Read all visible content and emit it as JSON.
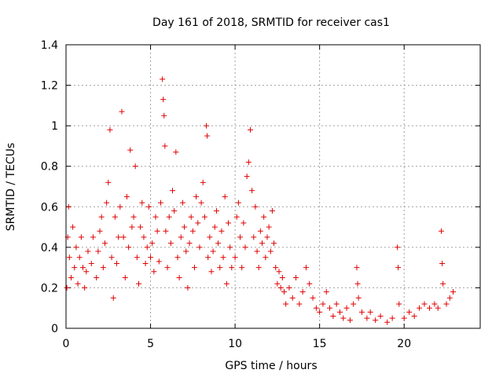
{
  "chart_data": {
    "type": "scatter",
    "title": "Day 161 of 2018, SRMTID for receiver cas1",
    "xlabel": "GPS time / hours",
    "ylabel": "SRMTID / TECUs",
    "xlim": [
      0,
      24.5
    ],
    "ylim": [
      0,
      1.4
    ],
    "x_ticks": [
      "0",
      "5",
      "10",
      "15",
      "20"
    ],
    "x_tick_values": [
      0,
      5,
      10,
      15,
      20
    ],
    "y_ticks": [
      "0",
      "0.2",
      "0.4",
      "0.6",
      "0.8",
      "1",
      "1.2",
      "1.4"
    ],
    "y_tick_values": [
      0,
      0.2,
      0.4,
      0.6,
      0.8,
      1.0,
      1.2,
      1.4
    ],
    "grid": true,
    "marker": "+",
    "series": [
      {
        "name": "SRMTID",
        "color": "#e00000",
        "points": [
          [
            0.05,
            0.2
          ],
          [
            0.1,
            0.45
          ],
          [
            0.15,
            0.6
          ],
          [
            0.2,
            0.35
          ],
          [
            0.3,
            0.25
          ],
          [
            0.4,
            0.5
          ],
          [
            0.5,
            0.3
          ],
          [
            0.6,
            0.4
          ],
          [
            0.7,
            0.22
          ],
          [
            0.8,
            0.35
          ],
          [
            0.9,
            0.45
          ],
          [
            1.0,
            0.3
          ],
          [
            1.1,
            0.2
          ],
          [
            1.2,
            0.28
          ],
          [
            1.3,
            0.38
          ],
          [
            1.5,
            0.32
          ],
          [
            1.6,
            0.45
          ],
          [
            1.8,
            0.25
          ],
          [
            1.9,
            0.38
          ],
          [
            2.0,
            0.48
          ],
          [
            2.1,
            0.55
          ],
          [
            2.2,
            0.3
          ],
          [
            2.3,
            0.42
          ],
          [
            2.4,
            0.62
          ],
          [
            2.5,
            0.72
          ],
          [
            2.6,
            0.98
          ],
          [
            2.7,
            0.35
          ],
          [
            2.8,
            0.15
          ],
          [
            2.9,
            0.55
          ],
          [
            3.0,
            0.32
          ],
          [
            3.1,
            0.45
          ],
          [
            3.2,
            0.6
          ],
          [
            3.3,
            1.07
          ],
          [
            3.4,
            0.45
          ],
          [
            3.5,
            0.25
          ],
          [
            3.6,
            0.65
          ],
          [
            3.7,
            0.4
          ],
          [
            3.8,
            0.88
          ],
          [
            3.9,
            0.5
          ],
          [
            4.0,
            0.55
          ],
          [
            4.1,
            0.8
          ],
          [
            4.2,
            0.35
          ],
          [
            4.3,
            0.22
          ],
          [
            4.4,
            0.5
          ],
          [
            4.5,
            0.62
          ],
          [
            4.6,
            0.45
          ],
          [
            4.7,
            0.32
          ],
          [
            4.8,
            0.4
          ],
          [
            4.9,
            0.6
          ],
          [
            5.0,
            0.35
          ],
          [
            5.1,
            0.42
          ],
          [
            5.2,
            0.28
          ],
          [
            5.3,
            0.55
          ],
          [
            5.4,
            0.48
          ],
          [
            5.5,
            0.33
          ],
          [
            5.6,
            0.62
          ],
          [
            5.7,
            1.23
          ],
          [
            5.75,
            1.13
          ],
          [
            5.8,
            1.05
          ],
          [
            5.85,
            0.9
          ],
          [
            5.9,
            0.48
          ],
          [
            6.0,
            0.3
          ],
          [
            6.1,
            0.55
          ],
          [
            6.2,
            0.42
          ],
          [
            6.3,
            0.68
          ],
          [
            6.4,
            0.58
          ],
          [
            6.5,
            0.87
          ],
          [
            6.6,
            0.35
          ],
          [
            6.7,
            0.25
          ],
          [
            6.8,
            0.45
          ],
          [
            6.9,
            0.62
          ],
          [
            7.0,
            0.5
          ],
          [
            7.1,
            0.38
          ],
          [
            7.2,
            0.2
          ],
          [
            7.3,
            0.42
          ],
          [
            7.4,
            0.55
          ],
          [
            7.5,
            0.48
          ],
          [
            7.6,
            0.3
          ],
          [
            7.7,
            0.65
          ],
          [
            7.8,
            0.52
          ],
          [
            7.9,
            0.4
          ],
          [
            8.0,
            0.62
          ],
          [
            8.1,
            0.72
          ],
          [
            8.2,
            0.55
          ],
          [
            8.3,
            1.0
          ],
          [
            8.35,
            0.95
          ],
          [
            8.4,
            0.35
          ],
          [
            8.5,
            0.45
          ],
          [
            8.6,
            0.28
          ],
          [
            8.7,
            0.38
          ],
          [
            8.8,
            0.5
          ],
          [
            8.9,
            0.58
          ],
          [
            9.0,
            0.42
          ],
          [
            9.1,
            0.3
          ],
          [
            9.2,
            0.48
          ],
          [
            9.3,
            0.35
          ],
          [
            9.4,
            0.65
          ],
          [
            9.5,
            0.22
          ],
          [
            9.6,
            0.52
          ],
          [
            9.7,
            0.4
          ],
          [
            9.8,
            0.3
          ],
          [
            10.0,
            0.35
          ],
          [
            10.1,
            0.55
          ],
          [
            10.2,
            0.62
          ],
          [
            10.3,
            0.45
          ],
          [
            10.4,
            0.3
          ],
          [
            10.5,
            0.52
          ],
          [
            10.6,
            0.4
          ],
          [
            10.7,
            0.75
          ],
          [
            10.8,
            0.82
          ],
          [
            10.9,
            0.98
          ],
          [
            11.0,
            0.68
          ],
          [
            11.1,
            0.45
          ],
          [
            11.2,
            0.6
          ],
          [
            11.3,
            0.38
          ],
          [
            11.4,
            0.3
          ],
          [
            11.5,
            0.48
          ],
          [
            11.6,
            0.42
          ],
          [
            11.7,
            0.55
          ],
          [
            11.8,
            0.35
          ],
          [
            11.9,
            0.45
          ],
          [
            12.0,
            0.5
          ],
          [
            12.1,
            0.38
          ],
          [
            12.2,
            0.58
          ],
          [
            12.3,
            0.42
          ],
          [
            12.4,
            0.3
          ],
          [
            12.5,
            0.22
          ],
          [
            12.6,
            0.28
          ],
          [
            12.7,
            0.2
          ],
          [
            12.8,
            0.25
          ],
          [
            12.9,
            0.18
          ],
          [
            13.0,
            0.12
          ],
          [
            13.2,
            0.2
          ],
          [
            13.4,
            0.15
          ],
          [
            13.6,
            0.25
          ],
          [
            13.8,
            0.12
          ],
          [
            14.0,
            0.18
          ],
          [
            14.2,
            0.3
          ],
          [
            14.4,
            0.22
          ],
          [
            14.6,
            0.15
          ],
          [
            14.8,
            0.1
          ],
          [
            15.0,
            0.08
          ],
          [
            15.2,
            0.12
          ],
          [
            15.4,
            0.18
          ],
          [
            15.6,
            0.1
          ],
          [
            15.8,
            0.06
          ],
          [
            16.0,
            0.12
          ],
          [
            16.2,
            0.08
          ],
          [
            16.4,
            0.05
          ],
          [
            16.6,
            0.1
          ],
          [
            16.8,
            0.04
          ],
          [
            17.0,
            0.12
          ],
          [
            17.2,
            0.3
          ],
          [
            17.25,
            0.22
          ],
          [
            17.3,
            0.15
          ],
          [
            17.5,
            0.08
          ],
          [
            17.8,
            0.05
          ],
          [
            18.0,
            0.08
          ],
          [
            18.3,
            0.04
          ],
          [
            18.6,
            0.06
          ],
          [
            19.0,
            0.03
          ],
          [
            19.3,
            0.05
          ],
          [
            19.6,
            0.4
          ],
          [
            19.65,
            0.3
          ],
          [
            19.7,
            0.12
          ],
          [
            20.0,
            0.05
          ],
          [
            20.3,
            0.08
          ],
          [
            20.6,
            0.06
          ],
          [
            20.9,
            0.1
          ],
          [
            21.2,
            0.12
          ],
          [
            21.5,
            0.1
          ],
          [
            21.8,
            0.12
          ],
          [
            22.0,
            0.1
          ],
          [
            22.2,
            0.48
          ],
          [
            22.25,
            0.32
          ],
          [
            22.3,
            0.22
          ],
          [
            22.5,
            0.12
          ],
          [
            22.7,
            0.15
          ],
          [
            22.9,
            0.18
          ]
        ]
      }
    ]
  }
}
